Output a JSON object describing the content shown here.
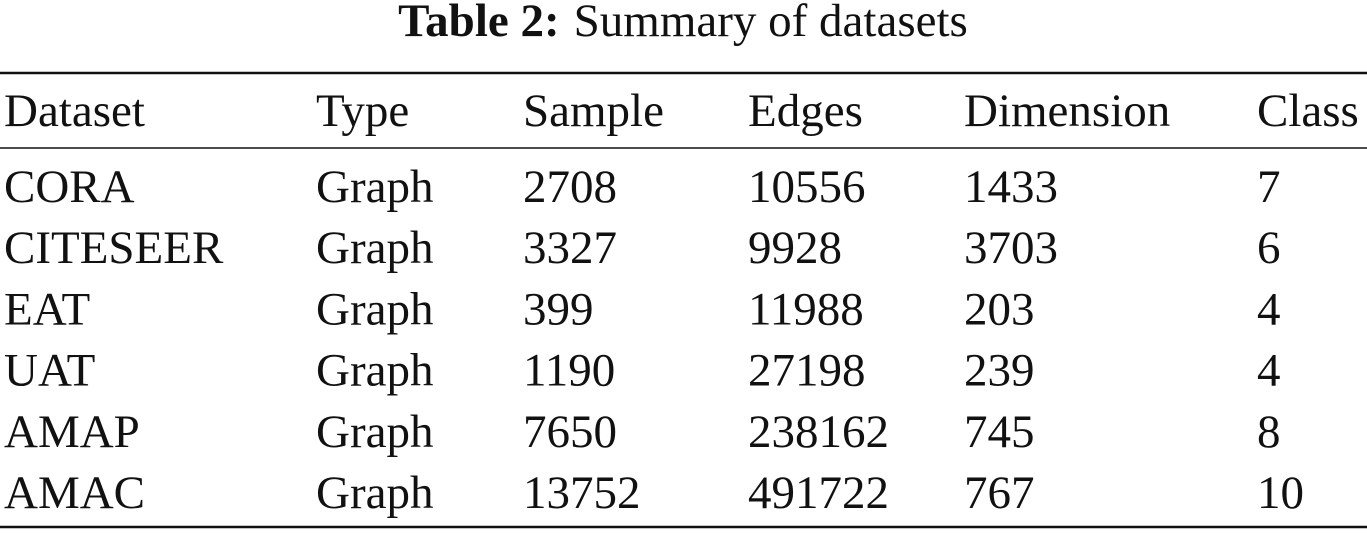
{
  "caption": {
    "label": "Table 2:",
    "text": "Summary of datasets"
  },
  "table": {
    "header": [
      "Dataset",
      "Type",
      "Sample",
      "Edges",
      "Dimension",
      "Class"
    ],
    "rows": [
      [
        "CORA",
        "Graph",
        2708,
        10556,
        1433,
        7
      ],
      [
        "CITESEER",
        "Graph",
        3327,
        9928,
        3703,
        6
      ],
      [
        "EAT",
        "Graph",
        399,
        11988,
        203,
        4
      ],
      [
        "UAT",
        "Graph",
        1190,
        27198,
        239,
        4
      ],
      [
        "AMAP",
        "Graph",
        7650,
        238162,
        745,
        8
      ],
      [
        "AMAC",
        "Graph",
        13752,
        491722,
        767,
        10
      ]
    ]
  }
}
